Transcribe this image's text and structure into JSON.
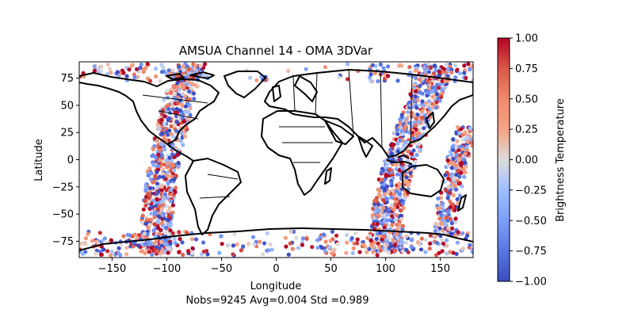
{
  "chart_data": {
    "type": "scatter",
    "title": "AMSUA Channel 14 - OMA 3DVar",
    "xlabel": "Longitude",
    "ylabel": "Latitude",
    "xlim": [
      -180,
      180
    ],
    "ylim": [
      -90,
      90
    ],
    "x_ticks": [
      -150,
      -100,
      -50,
      0,
      50,
      100,
      150
    ],
    "y_ticks": [
      -75,
      -50,
      -25,
      0,
      25,
      50,
      75
    ],
    "stats_text": "Nobs=9245 Avg=0.004 Std =0.989",
    "colorbar": {
      "label": "Brightness Temperature",
      "range": [
        -1.0,
        1.0
      ],
      "colormap": "coolwarm",
      "ticks": [
        "1.00",
        "0.75",
        "0.50",
        "0.25",
        "0.00",
        "−0.25",
        "−0.50",
        "−0.75",
        "−1.00"
      ]
    },
    "swaths": [
      {
        "lon_top": -80,
        "lon_bottom": -110,
        "lat_min": -85,
        "lat_max": 88,
        "width": 28
      },
      {
        "lon_top": 150,
        "lon_bottom": 100,
        "lat_min": -85,
        "lat_max": 88,
        "width": 30
      },
      {
        "lon_top": 175,
        "lon_bottom": 155,
        "lat_min": -70,
        "lat_max": 30,
        "width": 20
      }
    ],
    "polar_bands": [
      {
        "lat_min": 72,
        "lat_max": 88
      },
      {
        "lat_min": -88,
        "lat_max": -66
      }
    ],
    "colors": {
      "negative": "#3b4cc0",
      "neutral": "#dddddd",
      "positive": "#b40426",
      "coast": "#000000"
    }
  }
}
